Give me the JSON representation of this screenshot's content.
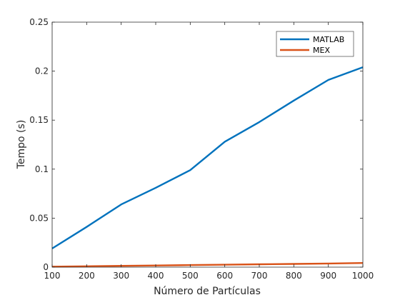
{
  "chart_data": {
    "type": "line",
    "title": "",
    "xlabel": "Número de Partículas",
    "ylabel": "Tempo (s)",
    "xlim": [
      100,
      1000
    ],
    "ylim": [
      0,
      0.25
    ],
    "x": [
      100,
      200,
      300,
      400,
      500,
      600,
      700,
      800,
      900,
      1000
    ],
    "xticks": [
      "100",
      "200",
      "300",
      "400",
      "500",
      "600",
      "700",
      "800",
      "900",
      "1000"
    ],
    "yticks": [
      "0",
      "0.05",
      "0.1",
      "0.15",
      "0.2",
      "0.25"
    ],
    "ytick_values": [
      0,
      0.05,
      0.1,
      0.15,
      0.2,
      0.25
    ],
    "grid": false,
    "legend_position": "top-right",
    "series": [
      {
        "name": "MATLAB",
        "color": "#0072bd",
        "values": [
          0.019,
          0.041,
          0.064,
          0.081,
          0.099,
          0.128,
          0.148,
          0.17,
          0.191,
          0.204
        ]
      },
      {
        "name": "MEX",
        "color": "#d95319",
        "values": [
          0.0005,
          0.0009,
          0.0013,
          0.0017,
          0.0021,
          0.0025,
          0.0029,
          0.0033,
          0.0037,
          0.0042
        ]
      }
    ]
  }
}
